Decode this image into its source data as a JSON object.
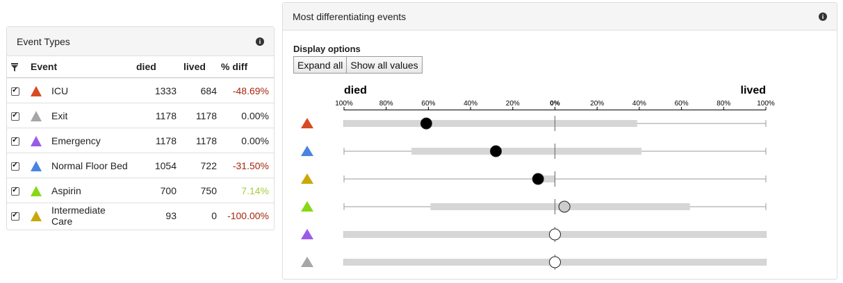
{
  "event_types": {
    "title": "Event Types",
    "info_icon": "info-icon",
    "columns": {
      "event": "Event",
      "died": "died",
      "lived": "lived",
      "diff": "% diff"
    },
    "rows": [
      {
        "checked": true,
        "color": "#d84a23",
        "name": "ICU",
        "died": "1333",
        "lived": "684",
        "diff": "-48.69%",
        "diff_color": "#a4260f"
      },
      {
        "checked": true,
        "color": "#a6a6a6",
        "name": "Exit",
        "died": "1178",
        "lived": "1178",
        "diff": "0.00%",
        "diff_color": "#222222"
      },
      {
        "checked": true,
        "color": "#9a5ce8",
        "name": "Emergency",
        "died": "1178",
        "lived": "1178",
        "diff": "0.00%",
        "diff_color": "#222222"
      },
      {
        "checked": true,
        "color": "#4a84e0",
        "name": "Normal Floor Bed",
        "died": "1054",
        "lived": "722",
        "diff": "-31.50%",
        "diff_color": "#a4260f"
      },
      {
        "checked": true,
        "color": "#88d814",
        "name": "Aspirin",
        "died": "700",
        "lived": "750",
        "diff": "7.14%",
        "diff_color": "#a6cc3a"
      },
      {
        "checked": true,
        "color": "#c9a90a",
        "name": "Intermediate Care",
        "died": "93",
        "lived": "0",
        "diff": "-100.00%",
        "diff_color": "#a4260f"
      }
    ]
  },
  "differentiating": {
    "title": "Most differentiating events",
    "info_icon": "info-icon",
    "display_options_label": "Display options",
    "buttons": {
      "expand_all": "Expand all",
      "show_all_values": "Show all values"
    }
  },
  "chart_data": {
    "type": "dot-range",
    "left_label": "died",
    "right_label": "lived",
    "tick_labels": [
      "100%",
      "80%",
      "60%",
      "40%",
      "20%",
      "0%",
      "20%",
      "40%",
      "60%",
      "80%",
      "100%"
    ],
    "ticks": [
      -100,
      -80,
      -60,
      -40,
      -20,
      0,
      20,
      40,
      60,
      80,
      100
    ],
    "xlim": [
      -100,
      100
    ],
    "rows": [
      {
        "color": "#d84a23",
        "value": -61,
        "range": [
          -100,
          39
        ],
        "marker": "#000000"
      },
      {
        "color": "#4a84e0",
        "value": -28,
        "range": [
          -68,
          41
        ],
        "marker": "#000000"
      },
      {
        "color": "#c9a90a",
        "value": -8,
        "range": [
          -8,
          0
        ],
        "marker": "#000000"
      },
      {
        "color": "#88d814",
        "value": 4.5,
        "range": [
          -59,
          64
        ],
        "marker": "#cccccc"
      },
      {
        "color": "#9a5ce8",
        "value": 0,
        "range": [
          -100,
          100
        ],
        "marker": "#ffffff"
      },
      {
        "color": "#a6a6a6",
        "value": 0,
        "range": [
          -100,
          100
        ],
        "marker": "#ffffff"
      }
    ]
  }
}
